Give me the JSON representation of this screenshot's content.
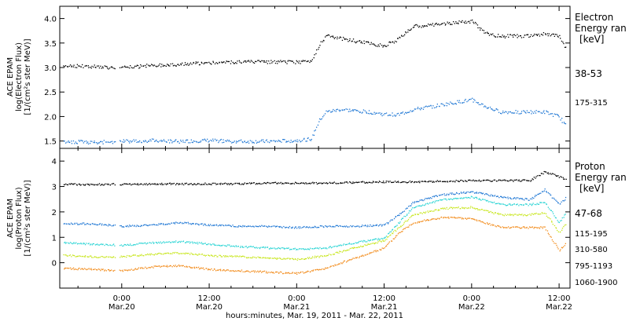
{
  "time_axis": {
    "caption": "hours:minutes, Mar. 19, 2011 - Mar. 22, 2011",
    "range_hours": [
      -8.5,
      61.5
    ],
    "ticks": [
      {
        "hour": 0,
        "time": "0:00",
        "date": "Mar.20"
      },
      {
        "hour": 12,
        "time": "12:00",
        "date": "Mar.20"
      },
      {
        "hour": 24,
        "time": "0:00",
        "date": "Mar.21"
      },
      {
        "hour": 36,
        "time": "12:00",
        "date": "Mar.21"
      },
      {
        "hour": 48,
        "time": "0:00",
        "date": "Mar.22"
      },
      {
        "hour": 60,
        "time": "12:00",
        "date": "Mar.22"
      }
    ]
  },
  "chart_data": [
    {
      "type": "scatter",
      "panel": "electron",
      "ylabel": [
        "ACE EPAM",
        "log(Electron Flux)",
        "[1/(cm²s ster MeV)]"
      ],
      "ylim": [
        1.35,
        4.25
      ],
      "yticks": [
        "1.5",
        "2.0",
        "2.5",
        "3.0",
        "3.5",
        "4.0"
      ],
      "legend_title": [
        "Electron",
        "Energy ran",
        "[keV]"
      ],
      "grid": false,
      "series": [
        {
          "name": "38-53",
          "color": "#000000",
          "x": [
            -8,
            -4,
            0,
            4,
            8,
            12,
            16,
            20,
            24,
            26,
            27,
            28,
            30,
            34,
            36,
            38,
            40,
            44,
            48,
            50,
            52,
            56,
            58,
            60,
            61
          ],
          "y": [
            3.05,
            3.03,
            3.0,
            3.05,
            3.08,
            3.1,
            3.12,
            3.12,
            3.12,
            3.15,
            3.45,
            3.65,
            3.6,
            3.5,
            3.45,
            3.6,
            3.85,
            3.9,
            3.95,
            3.7,
            3.65,
            3.65,
            3.7,
            3.65,
            3.35
          ]
        },
        {
          "name": "175-315",
          "color": "#1f77d4",
          "x": [
            -8,
            -4,
            0,
            4,
            8,
            12,
            16,
            20,
            24,
            26,
            27,
            28,
            30,
            34,
            36,
            38,
            40,
            44,
            48,
            50,
            52,
            56,
            58,
            60,
            61
          ],
          "y": [
            1.5,
            1.48,
            1.5,
            1.52,
            1.5,
            1.52,
            1.5,
            1.5,
            1.52,
            1.55,
            1.9,
            2.1,
            2.15,
            2.1,
            2.05,
            2.05,
            2.15,
            2.25,
            2.35,
            2.2,
            2.1,
            2.1,
            2.1,
            2.0,
            1.8
          ]
        }
      ]
    },
    {
      "type": "scatter",
      "panel": "proton",
      "ylabel": [
        "ACE EPAM",
        "log(Proton Flux)",
        "[1/(cm²s ster MeV)]"
      ],
      "ylim": [
        -1.0,
        4.5
      ],
      "yticks": [
        "0",
        "1",
        "2",
        "3",
        "4"
      ],
      "legend_title": [
        "Proton",
        "Energy ran",
        "[keV]"
      ],
      "grid": false,
      "series": [
        {
          "name": "47-68",
          "color": "#000000",
          "x": [
            -8,
            -4,
            0,
            4,
            8,
            12,
            16,
            20,
            24,
            28,
            32,
            36,
            40,
            44,
            48,
            52,
            56,
            58,
            60,
            61
          ],
          "y": [
            3.1,
            3.1,
            3.1,
            3.12,
            3.12,
            3.12,
            3.12,
            3.15,
            3.15,
            3.15,
            3.18,
            3.2,
            3.2,
            3.22,
            3.25,
            3.25,
            3.25,
            3.6,
            3.4,
            3.3
          ]
        },
        {
          "name": "115-195",
          "color": "#1f77d4",
          "x": [
            -8,
            -4,
            0,
            4,
            8,
            12,
            16,
            20,
            24,
            28,
            32,
            36,
            38,
            40,
            44,
            48,
            52,
            56,
            58,
            60,
            61
          ],
          "y": [
            1.55,
            1.55,
            1.45,
            1.5,
            1.6,
            1.5,
            1.45,
            1.45,
            1.4,
            1.45,
            1.45,
            1.5,
            1.9,
            2.4,
            2.7,
            2.8,
            2.6,
            2.5,
            2.9,
            2.3,
            2.6
          ]
        },
        {
          "name": "310-580",
          "color": "#2ad4d4",
          "x": [
            -8,
            -4,
            0,
            4,
            8,
            12,
            16,
            20,
            24,
            28,
            32,
            36,
            38,
            40,
            44,
            48,
            52,
            56,
            58,
            60,
            61
          ],
          "y": [
            0.8,
            0.75,
            0.7,
            0.8,
            0.85,
            0.75,
            0.65,
            0.6,
            0.55,
            0.6,
            0.8,
            1.0,
            1.6,
            2.2,
            2.5,
            2.6,
            2.3,
            2.3,
            2.4,
            1.6,
            2.0
          ]
        },
        {
          "name": "795-1193",
          "color": "#c8e61e",
          "x": [
            -8,
            -4,
            0,
            4,
            8,
            12,
            16,
            20,
            24,
            28,
            32,
            36,
            38,
            40,
            44,
            48,
            52,
            56,
            58,
            60,
            61
          ],
          "y": [
            0.3,
            0.25,
            0.25,
            0.35,
            0.4,
            0.3,
            0.25,
            0.2,
            0.15,
            0.3,
            0.6,
            0.9,
            1.4,
            1.9,
            2.15,
            2.2,
            1.9,
            1.9,
            2.0,
            1.2,
            1.6
          ]
        },
        {
          "name": "1060-1900",
          "color": "#f28c1c",
          "x": [
            -8,
            -4,
            0,
            4,
            8,
            12,
            16,
            20,
            24,
            28,
            32,
            36,
            38,
            40,
            44,
            48,
            52,
            56,
            58,
            60,
            61
          ],
          "y": [
            -0.2,
            -0.25,
            -0.3,
            -0.15,
            -0.1,
            -0.25,
            -0.3,
            -0.35,
            -0.4,
            -0.2,
            0.2,
            0.6,
            1.2,
            1.6,
            1.8,
            1.75,
            1.4,
            1.4,
            1.4,
            0.5,
            0.8
          ]
        }
      ]
    }
  ]
}
